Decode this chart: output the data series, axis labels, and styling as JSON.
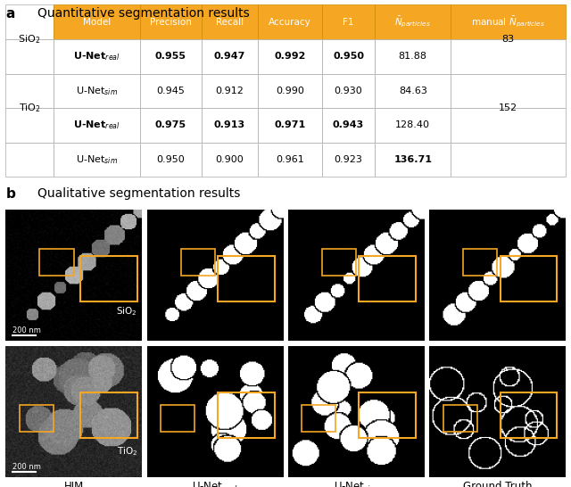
{
  "panel_a_label": "a",
  "panel_b_label": "b",
  "title_a": "Quantitative segmentation results",
  "title_b": "Qualitative segmentation results",
  "header_bg": "#F5A623",
  "header_fg": "#FFFFFF",
  "table_border": "#CCCCCC",
  "col_labels": [
    "Model",
    "Precision",
    "Recall",
    "Accuracy",
    "F1",
    "N_particles_bar",
    "manual_N_particles_bar"
  ],
  "col_labels_display": [
    "Model",
    "Precision",
    "Recall",
    "Accuracy",
    "F1",
    "ҰNₘparticles",
    "manual ҰNₘparticles"
  ],
  "row_groups": [
    {
      "group_label": "SiO₂",
      "rows": [
        {
          "model": "U-Netᵣᵉᵃₗ",
          "model_display": "U-Net_real",
          "precision": "0.955",
          "recall": "0.947",
          "accuracy": "0.992",
          "f1": "0.950",
          "n": "81.88",
          "bold_cols": [
            0,
            1,
            2,
            3,
            4
          ],
          "bold_n": false
        },
        {
          "model": "U-Netₛᴵᵐ",
          "model_display": "U-Net_sim",
          "precision": "0.945",
          "recall": "0.912",
          "accuracy": "0.990",
          "f1": "0.930",
          "n": "84.63",
          "bold_cols": [],
          "bold_n": false
        }
      ],
      "manual_n": "83"
    },
    {
      "group_label": "TiO₂",
      "rows": [
        {
          "model": "U-Netᵣᵉᵃₗ",
          "model_display": "U-Net_real",
          "precision": "0.975",
          "recall": "0.913",
          "accuracy": "0.971",
          "f1": "0.943",
          "n": "128.40",
          "bold_cols": [
            0,
            1,
            2,
            3,
            4
          ],
          "bold_n": false
        },
        {
          "model": "U-Netₛᴵᵐ",
          "model_display": "U-Net_sim",
          "precision": "0.950",
          "recall": "0.900",
          "accuracy": "0.961",
          "f1": "0.923",
          "n": "136.71",
          "bold_cols": [
            5
          ],
          "bold_n": true
        }
      ],
      "manual_n": "152"
    }
  ],
  "col_labels_bottom": [
    "HIM",
    "U-Net_real",
    "U-Net_sim",
    "Ground Truth"
  ],
  "orange_color": "#F5A623",
  "orange_border": "#E8950F"
}
